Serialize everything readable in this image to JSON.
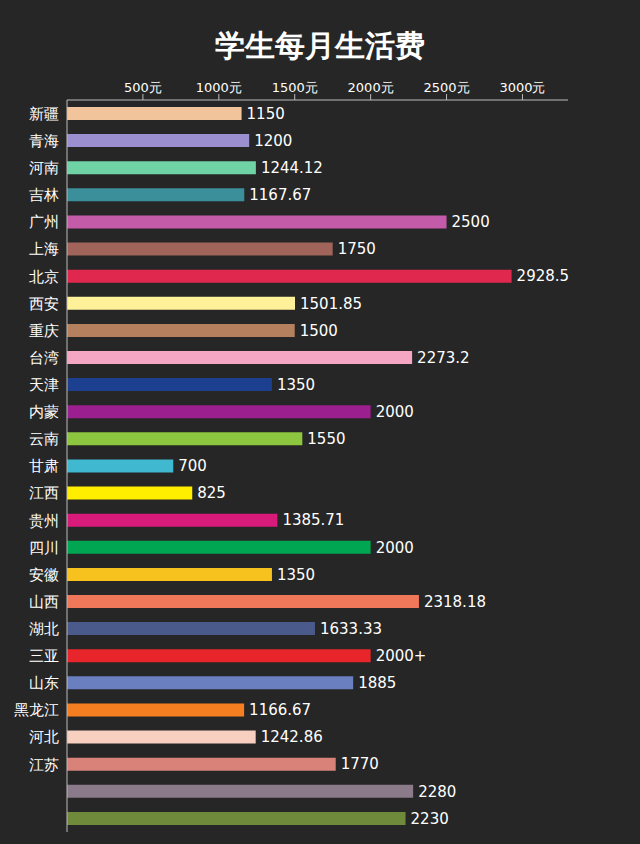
{
  "chart_data": {
    "type": "bar",
    "title": "学生每月生活费",
    "orientation": "horizontal",
    "data_labels": true,
    "grid": false,
    "categories": [
      "新疆",
      "青海",
      "河南",
      "吉林",
      "广州",
      "上海",
      "北京",
      "西安",
      "重庆",
      "台湾",
      "天津",
      "内蒙",
      "云南",
      "甘肃",
      "江西",
      "贵州",
      "四川",
      "安徽",
      "山西",
      "湖北",
      "三亚",
      "山东",
      "黑龙江",
      "河北",
      "江苏",
      null,
      null
    ],
    "values": [
      1150,
      1200,
      1244.12,
      1167.67,
      2500,
      1750,
      2928.5,
      1501.85,
      1500,
      2273.2,
      1350,
      2000,
      1550,
      700,
      825,
      1385.71,
      2000,
      1350,
      2318.18,
      1633.33,
      2000,
      1885,
      1166.67,
      1242.86,
      1770,
      2280,
      2230
    ],
    "value_labels": [
      "1150",
      "1200",
      "1244.12",
      "1167.67",
      "2500",
      "1750",
      "2928.5",
      "1501.85",
      "1500",
      "2273.2",
      "1350",
      "2000",
      "1550",
      "700",
      "825",
      "1385.71",
      "2000",
      "1350",
      "2318.18",
      "1633.33",
      "2000+",
      "1885",
      "1166.67",
      "1242.86",
      "1770",
      "2280",
      "2230"
    ],
    "colors": [
      "#f2c49b",
      "#9b8fd0",
      "#6fd3a6",
      "#3a8f9a",
      "#c45ba8",
      "#a0645a",
      "#e0284f",
      "#fff19a",
      "#b5805e",
      "#f4a6c3",
      "#1c3f8f",
      "#9b1f8f",
      "#8dc63f",
      "#3fb8d0",
      "#ffee00",
      "#d81b7a",
      "#00a651",
      "#f7c21e",
      "#f0785a",
      "#4a5a8a",
      "#e8252a",
      "#6a7fc0",
      "#f57f20",
      "#f8d0c0",
      "#d9827a",
      "#8a7a8a",
      "#6e8a3a"
    ],
    "xlim": [
      0,
      3300
    ],
    "xticks": [
      {
        "value": 500,
        "label": "500元"
      },
      {
        "value": 1000,
        "label": "1000元"
      },
      {
        "value": 1500,
        "label": "1500元"
      },
      {
        "value": 2000,
        "label": "2000元"
      },
      {
        "value": 2500,
        "label": "2500元"
      },
      {
        "value": 3000,
        "label": "3000元"
      }
    ]
  }
}
